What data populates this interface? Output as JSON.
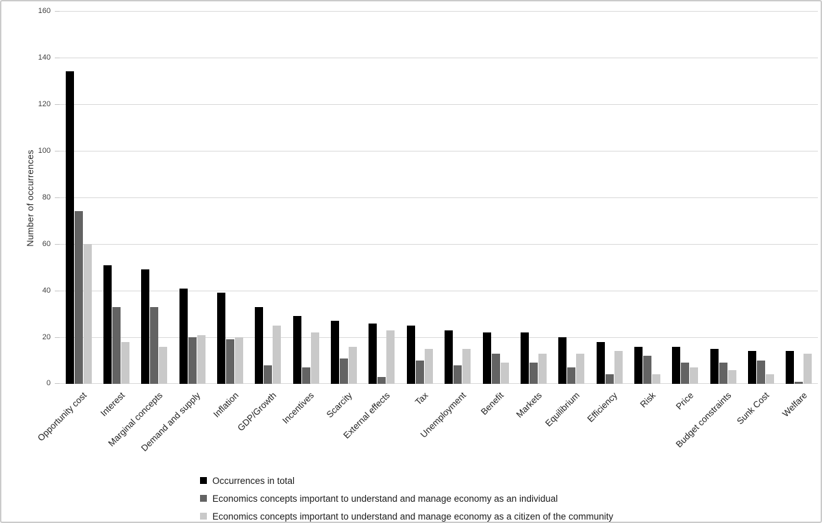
{
  "figure": {
    "background": "#ffffff",
    "border_color": "#cbcbcb"
  },
  "chart_data": {
    "type": "bar",
    "title": "",
    "xlabel": "",
    "ylabel": "Number of occurrences",
    "ylim": [
      0,
      160
    ],
    "ytick_interval": 20,
    "ytick_labels": [
      "0",
      "20",
      "40",
      "60",
      "80",
      "100",
      "120",
      "140",
      "160"
    ],
    "grid": "horizontal",
    "gridline_color": "#d9d9d9",
    "axis_text_color": "#404040",
    "legend_position": "bottom-left",
    "categories": [
      "Opportunity cost",
      "Interest",
      "Marginal concepts",
      "Demand and supply",
      "Inflation",
      "GDP/Growth",
      "Incentives",
      "Scarcity",
      "External effects",
      "Tax",
      "Unemployment",
      "Benefit",
      "Markets",
      "Equilibrium",
      "Efficiency",
      "Risk",
      "Price",
      "Budget constraints",
      "Sunk Cost",
      "Welfare"
    ],
    "series": [
      {
        "name": "Occurrences in total",
        "color": "#000000",
        "values": [
          134,
          51,
          49,
          41,
          39,
          33,
          29,
          27,
          26,
          25,
          23,
          22,
          22,
          20,
          18,
          16,
          16,
          15,
          14,
          14
        ]
      },
      {
        "name": "Economics concepts important to understand and manage economy as an individual",
        "color": "#636363",
        "values": [
          74,
          33,
          33,
          20,
          19,
          8,
          7,
          11,
          3,
          10,
          8,
          13,
          9,
          7,
          4,
          12,
          9,
          9,
          10,
          1
        ]
      },
      {
        "name": "Economics concepts important  to understand and manage economy as a citizen of the community",
        "color": "#c9c9c9",
        "values": [
          60,
          18,
          16,
          21,
          20,
          25,
          22,
          16,
          23,
          15,
          15,
          9,
          13,
          13,
          14,
          4,
          7,
          6,
          4,
          13
        ]
      }
    ]
  }
}
